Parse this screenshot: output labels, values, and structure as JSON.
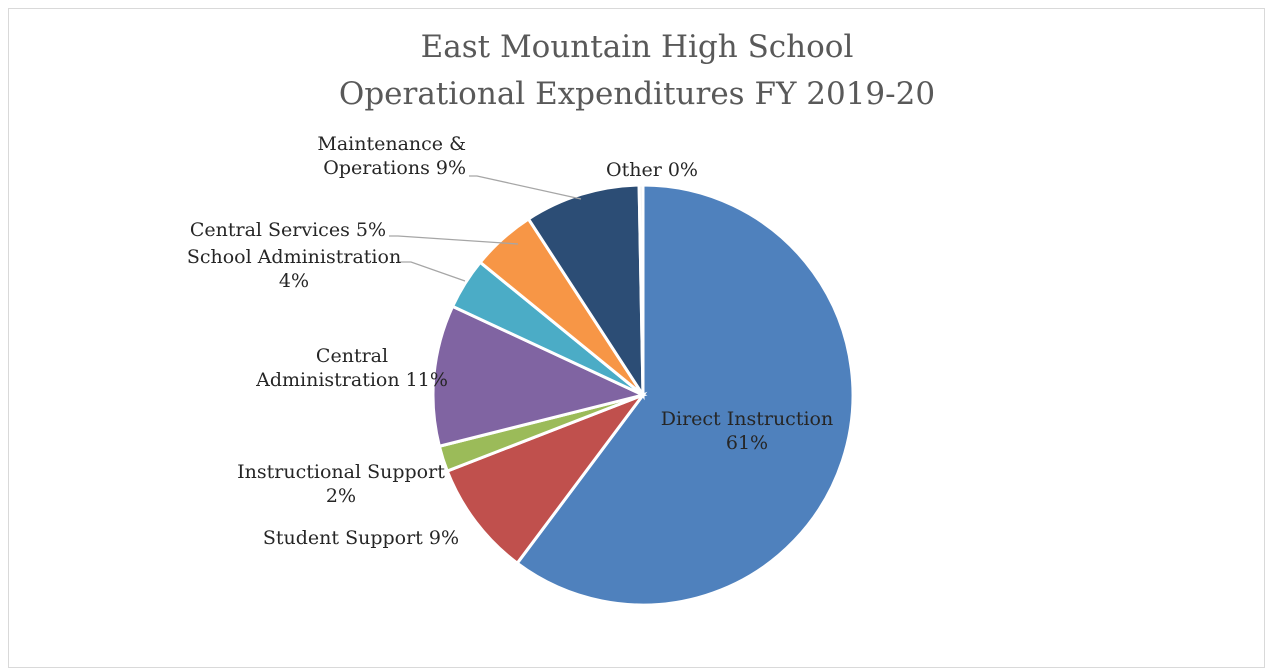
{
  "chart_data": {
    "type": "pie",
    "title_lines": [
      "East Mountain High School",
      "Operational Expenditures FY 2019-20"
    ],
    "start_angle_deg": 0,
    "direction": "clockwise",
    "legend": "none",
    "slices": [
      {
        "name": "Direct Instruction",
        "value": 61,
        "pct_label": "61%",
        "color": "#4f81bd"
      },
      {
        "name": "Student Support",
        "value": 9,
        "pct_label": "9%",
        "color": "#c0504d"
      },
      {
        "name": "Instructional Support",
        "value": 2,
        "pct_label": "2%",
        "color": "#9bbb59"
      },
      {
        "name": "Central Administration",
        "value": 11,
        "pct_label": "11%",
        "color": "#8064a2"
      },
      {
        "name": "School Administration",
        "value": 4,
        "pct_label": "4%",
        "color": "#4bacc6"
      },
      {
        "name": "Central Services",
        "value": 5,
        "pct_label": "5%",
        "color": "#f79646"
      },
      {
        "name": "Maintenance & Operations",
        "value": 9,
        "pct_label": "9%",
        "color": "#2c4d75"
      },
      {
        "name": "Other",
        "value": 0.3,
        "pct_label": "0%",
        "color": "#eeeeee"
      }
    ],
    "data_labels": [
      [
        "Direct Instruction",
        "61%"
      ],
      [
        "Student Support 9%"
      ],
      [
        "Instructional Support",
        "2%"
      ],
      [
        "Central",
        "Administration 11%"
      ],
      [
        "School Administration",
        "4%"
      ],
      [
        "Central Services 5%"
      ],
      [
        "Maintenance &",
        "Operations 9%"
      ],
      [
        "Other 0%"
      ]
    ]
  }
}
